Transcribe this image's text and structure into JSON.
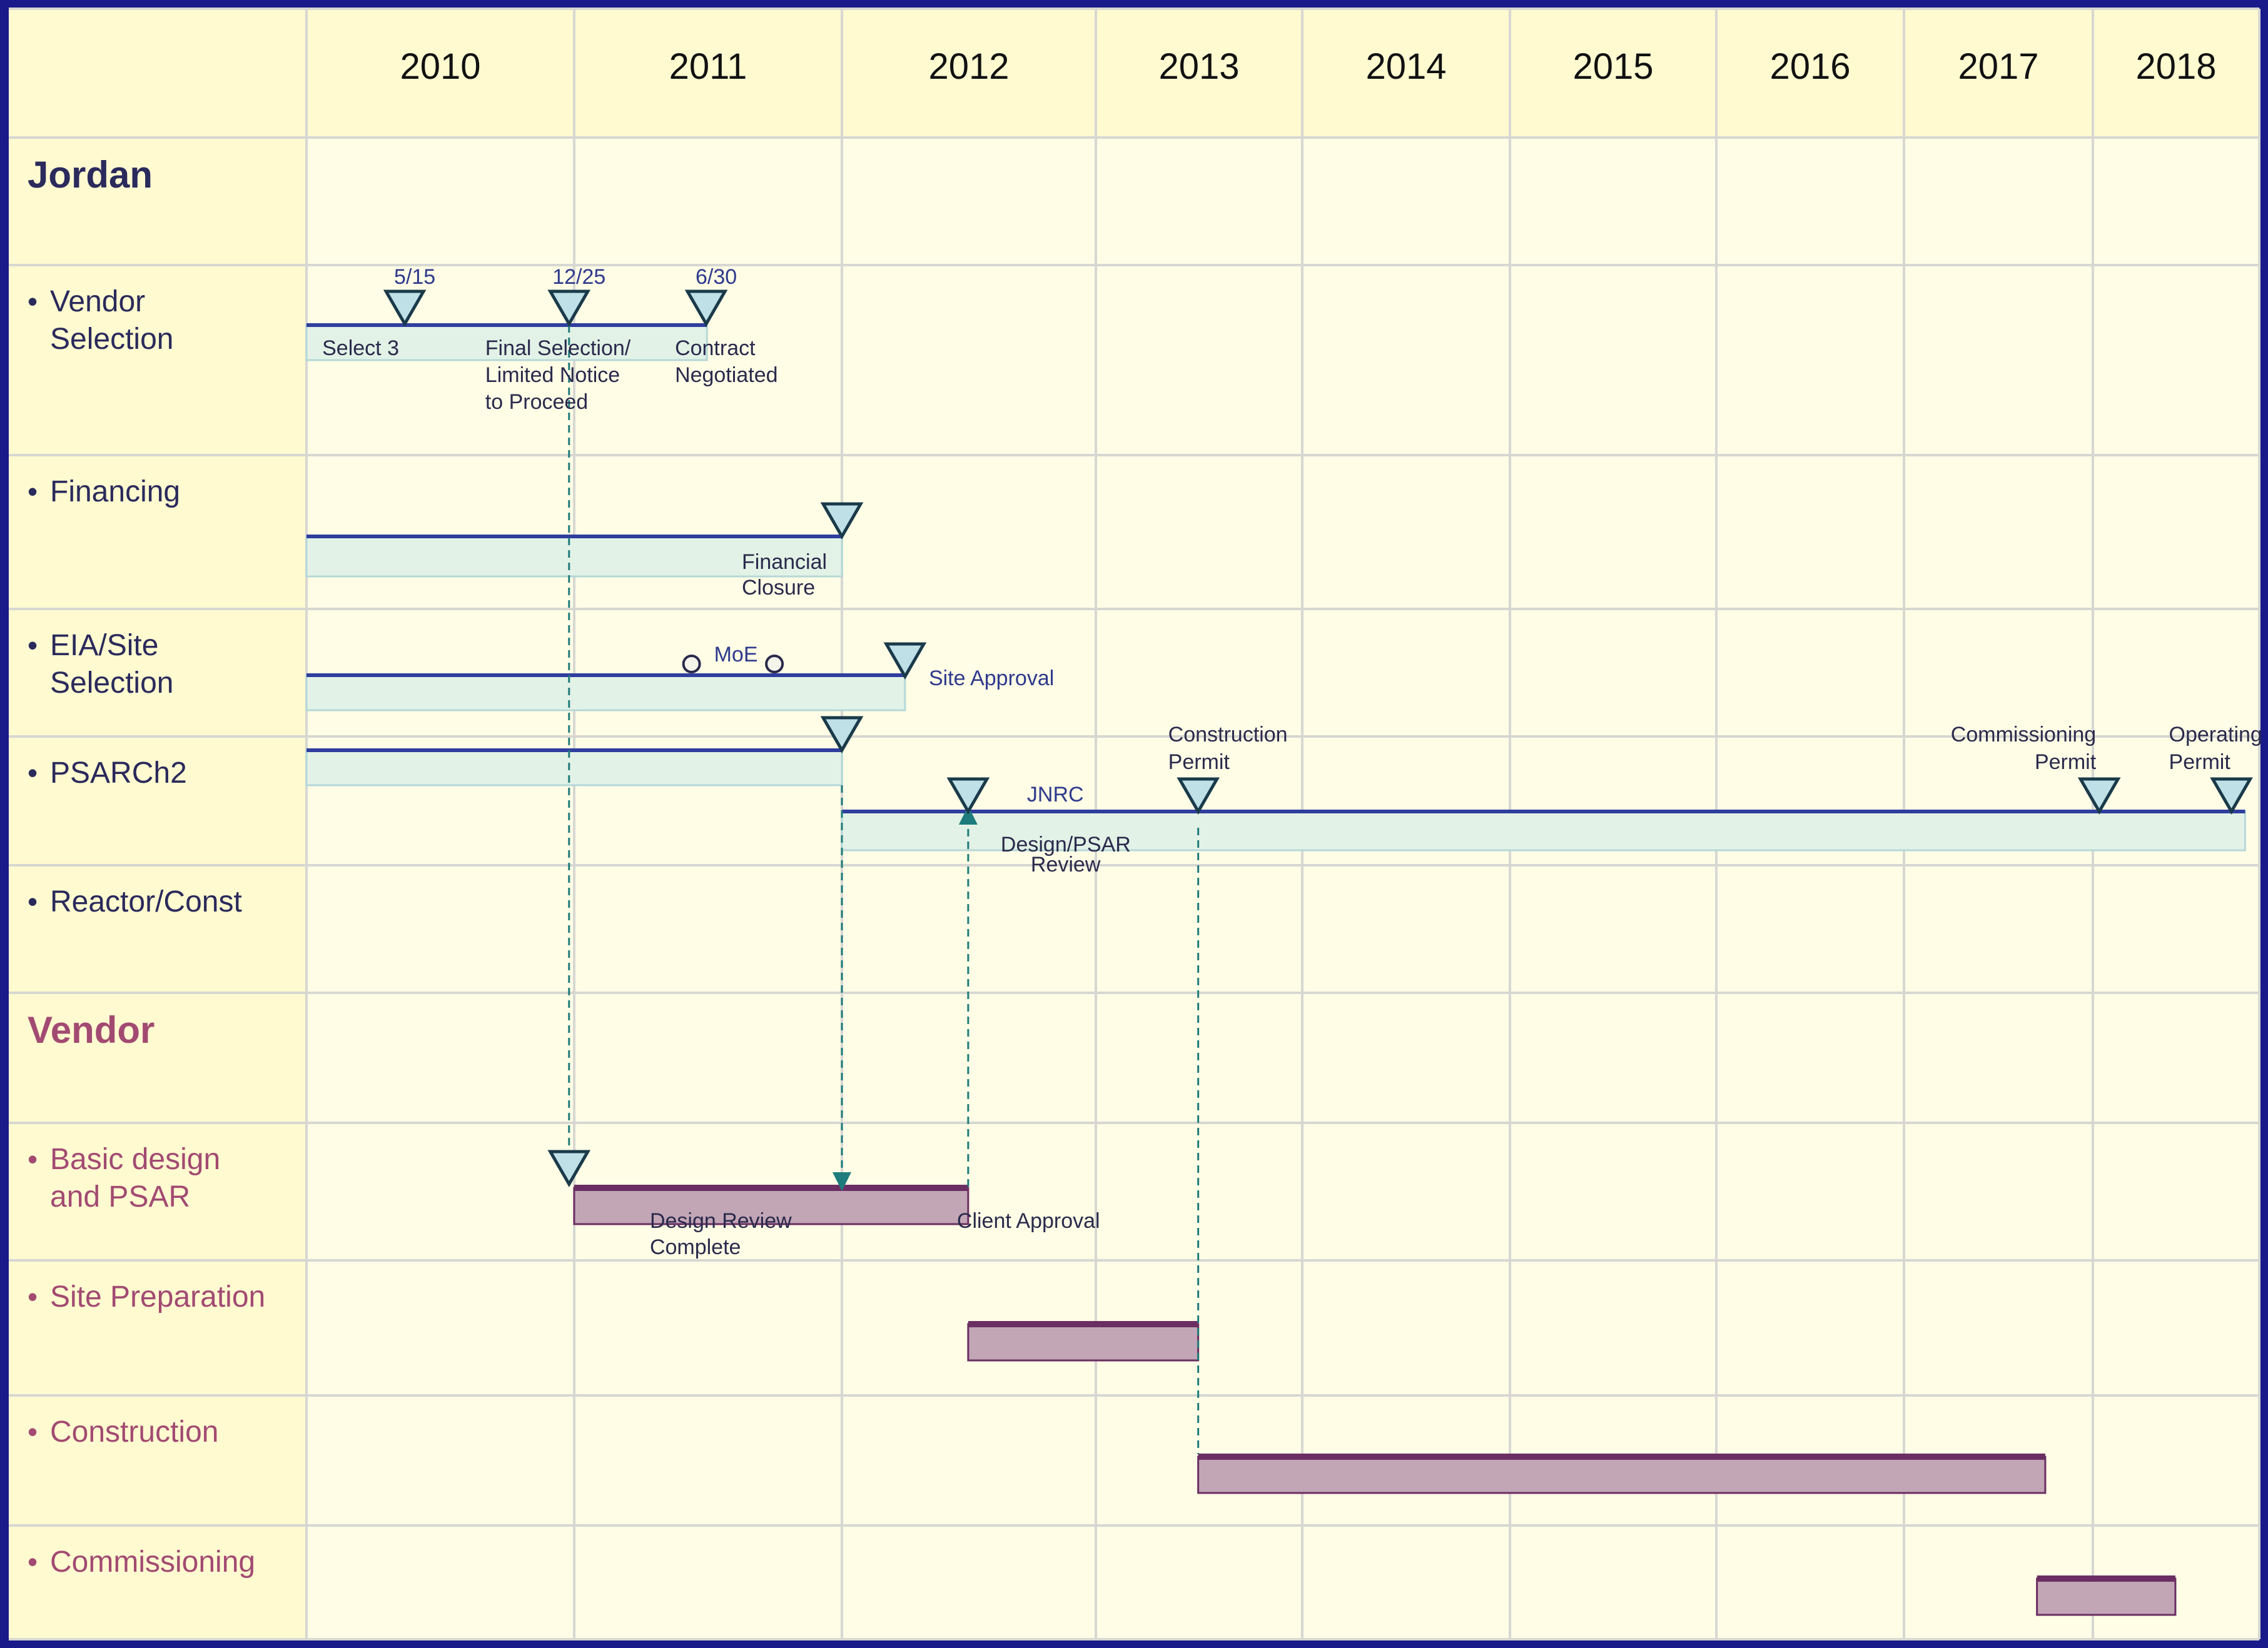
{
  "years": [
    "2010",
    "2011",
    "2012",
    "2013",
    "2014",
    "2015",
    "2016",
    "2017",
    "2018"
  ],
  "rows": [
    {
      "label": [
        "Jordan"
      ],
      "kind": "section-jordan"
    },
    {
      "label": [
        "Vendor",
        "Selection"
      ],
      "kind": "jordan"
    },
    {
      "label": [
        "Financing"
      ],
      "kind": "jordan"
    },
    {
      "label": [
        "EIA/Site",
        "Selection"
      ],
      "kind": "jordan"
    },
    {
      "label": [
        "PSARCh2"
      ],
      "kind": "jordan"
    },
    {
      "label": [
        "Reactor/Const"
      ],
      "kind": "jordan"
    },
    {
      "label": [
        "Vendor"
      ],
      "kind": "section-vendor"
    },
    {
      "label": [
        "Basic design",
        "and PSAR"
      ],
      "kind": "vendor"
    },
    {
      "label": [
        "Site Preparation"
      ],
      "kind": "vendor"
    },
    {
      "label": [
        "Construction"
      ],
      "kind": "vendor"
    },
    {
      "label": [
        "Commissioning"
      ],
      "kind": "vendor"
    }
  ],
  "colors": {
    "frame": "#1a1a8a",
    "background": "#fffde6",
    "header": "#fffad0",
    "label_column": "#fffad0",
    "grid": "#d7d7d2",
    "jordan_text": "#2a2a5c",
    "vendor_text": "#a24a72",
    "jordan_bar_fill": "#e2f2e6",
    "jordan_bar_edge": "#2f3e9e",
    "vendor_bar_fill": "#c2a6b6",
    "vendor_bar_edge": "#6b2e63",
    "milestone_fill": "#bfe0e6",
    "milestone_stroke": "#1a3a4a",
    "connector": "#1f7c7c"
  },
  "gantt": {
    "x_axis": {
      "start": "2010-01-01",
      "end": "2018-12-31",
      "unit": "year"
    },
    "tasks": [
      {
        "name": "Vendor Selection",
        "row": 1,
        "start": "2010-01-01",
        "end": "2011-07-01",
        "group": "Jordan"
      },
      {
        "name": "Financing",
        "row": 2,
        "start": "2010-01-01",
        "end": "2012-01-01",
        "group": "Jordan"
      },
      {
        "name": "EIA/Site Selection",
        "row": 3,
        "start": "2010-01-01",
        "end": "2012-04-01",
        "group": "Jordan"
      },
      {
        "name": "PSARCh2",
        "row": 4,
        "start": "2010-01-01",
        "end": "2012-01-01",
        "group": "Jordan"
      },
      {
        "name": "JNRC Design/PSAR Review",
        "row": 4,
        "start": "2012-01-01",
        "end": "2018-12-01",
        "group": "Jordan"
      },
      {
        "name": "Basic design and PSAR",
        "row": 7,
        "start": "2011-01-01",
        "end": "2012-07-01",
        "group": "Vendor"
      },
      {
        "name": "Site Preparation",
        "row": 8,
        "start": "2012-07-01",
        "end": "2013-07-01",
        "group": "Vendor"
      },
      {
        "name": "Construction",
        "row": 9,
        "start": "2013-07-01",
        "end": "2017-10-01",
        "group": "Vendor"
      },
      {
        "name": "Commissioning",
        "row": 10,
        "start": "2017-09-15",
        "end": "2018-07-01",
        "group": "Vendor"
      }
    ],
    "milestones": [
      {
        "row": 1,
        "date": "2010-05-15",
        "top_label": "5/15",
        "caption": [
          "Select 3"
        ]
      },
      {
        "row": 1,
        "date": "2010-12-25",
        "top_label": "12/25",
        "caption": [
          "Final Selection/",
          "Limited Notice",
          "to Proceed"
        ]
      },
      {
        "row": 1,
        "date": "2011-06-30",
        "top_label": "6/30",
        "caption": [
          "Contract",
          "Negotiated"
        ]
      },
      {
        "row": 2,
        "date": "2012-01-01",
        "caption": [
          "Financial",
          "Closure"
        ]
      },
      {
        "row": 3,
        "date": "2012-04-01",
        "caption": [
          "Site Approval"
        ]
      },
      {
        "row": 4,
        "date": "2012-01-01",
        "caption": []
      },
      {
        "row": 4,
        "date": "2012-07-01",
        "caption": [
          "JNRC",
          "Design/PSAR",
          "Review"
        ]
      },
      {
        "row": 4,
        "date": "2013-07-01",
        "caption": [
          "Construction",
          "Permit"
        ]
      },
      {
        "row": 4,
        "date": "2018-01-15",
        "caption": [
          "Commissioning",
          "Permit"
        ]
      },
      {
        "row": 4,
        "date": "2018-11-01",
        "caption": [
          "Operating",
          "Permit"
        ]
      },
      {
        "row": 7,
        "date": "2010-12-25",
        "caption": []
      }
    ],
    "circle_markers": [
      {
        "row": 3,
        "date": "2011-06-10",
        "label": "MoE"
      },
      {
        "row": 3,
        "date": "2011-10-01",
        "label": ""
      }
    ],
    "annotations": [
      {
        "row": 7,
        "anchor": "2011-09-01",
        "text": [
          "Design Review",
          "Complete"
        ]
      },
      {
        "row": 7,
        "anchor": "2012-07-01",
        "text": [
          "Client Approval"
        ]
      }
    ],
    "dependencies": [
      {
        "from_row": 1,
        "to_row": 7,
        "date": "2010-12-25",
        "arrow": "none"
      },
      {
        "from_row": 4,
        "to_row": 7,
        "date": "2012-01-01",
        "arrow": "down"
      },
      {
        "from_row": 7,
        "to_row": 4,
        "date": "2012-07-01",
        "arrow": "up"
      },
      {
        "from_row": 4,
        "to_row": 9,
        "date": "2013-07-01",
        "arrow": "none"
      }
    ]
  }
}
